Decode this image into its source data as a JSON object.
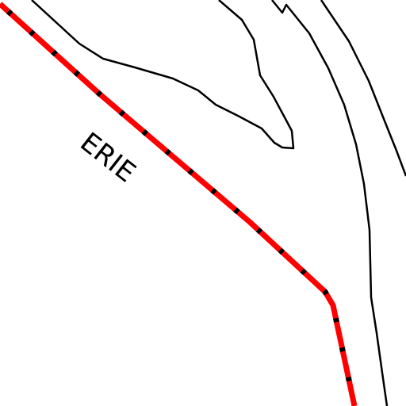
{
  "labels": [
    {
      "text": "ERIE"
    }
  ]
}
